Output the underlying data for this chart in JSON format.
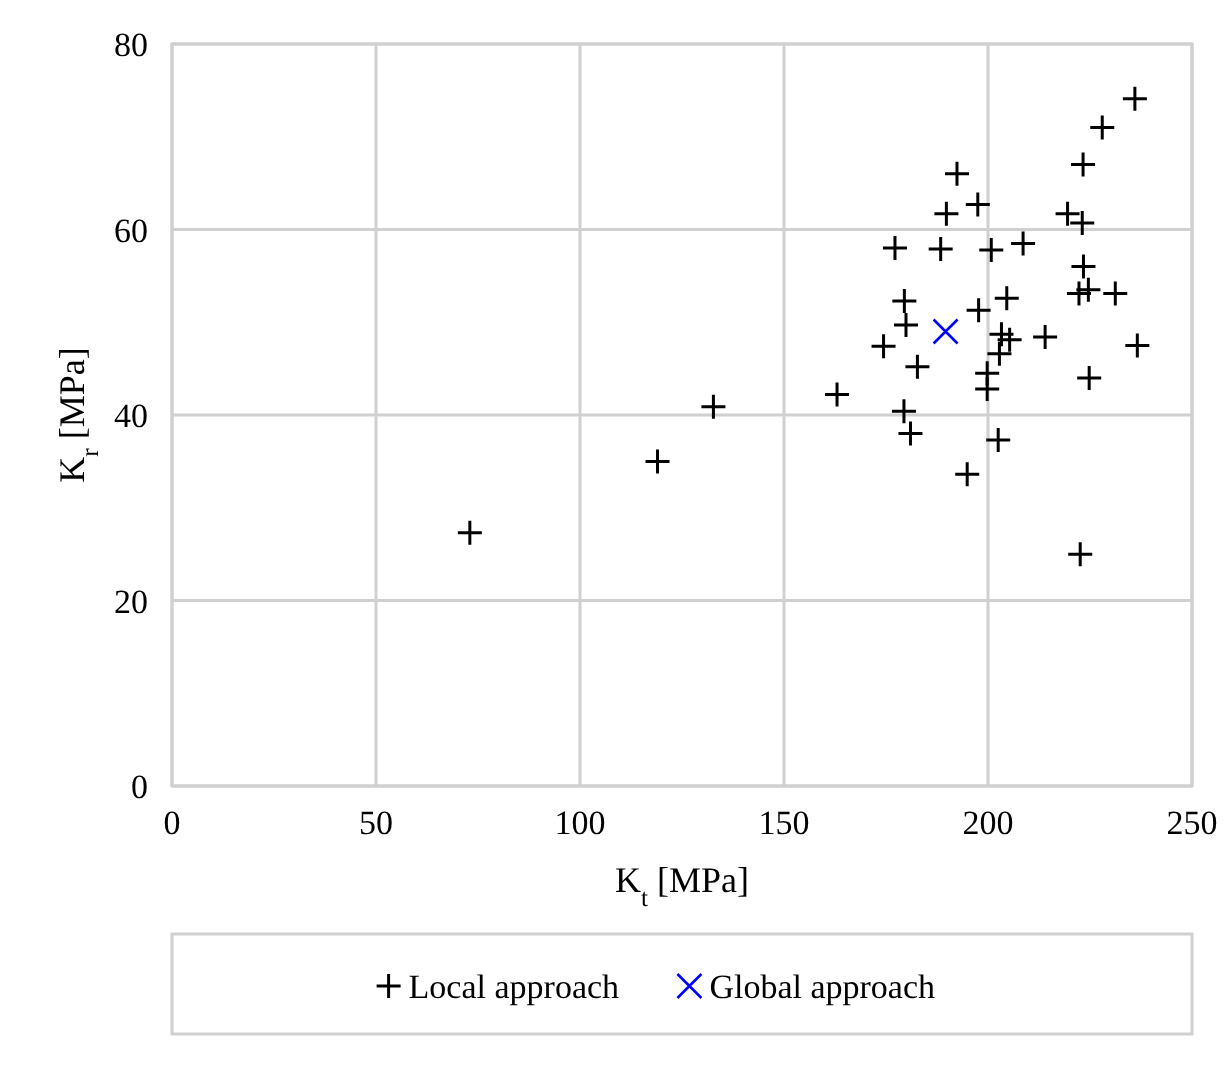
{
  "chart_data": {
    "type": "scatter",
    "xlabel": "K$_{t}$ [MPa]",
    "ylabel": "K$_{r}$ [MPa]",
    "xlim": [
      0,
      250
    ],
    "xticks": [
      0,
      50,
      100,
      150,
      200,
      250
    ],
    "ylim": [
      0,
      80
    ],
    "yticks": [
      0,
      20,
      40,
      60,
      80
    ],
    "grid": true,
    "legend": "bottom",
    "series": [
      {
        "name": "Local approach",
        "color": "#000000",
        "marker": "plus",
        "x": [
          73,
          119,
          132.7,
          163,
          174.4,
          177.2,
          179.4,
          179.5,
          179.9,
          181,
          182.7,
          188.4,
          189.8,
          192.4,
          194.9,
          197.5,
          197.7,
          199.8,
          199.8,
          200.8,
          202.5,
          202.8,
          203.3,
          204.6,
          205.3,
          208.6,
          214,
          219.5,
          222.3,
          222.6,
          223.1,
          223.3,
          223.4,
          224.6,
          224.8,
          228,
          231.2,
          236,
          236.6
        ],
        "values": [
          27.3,
          35,
          40.9,
          42.2,
          47.4,
          58,
          40.4,
          52.3,
          49.7,
          38,
          45.2,
          57.9,
          61.7,
          66,
          33.6,
          62.7,
          51.3,
          44.5,
          42.8,
          57.8,
          37.3,
          46.6,
          48.7,
          52.6,
          48.1,
          58.5,
          48.4,
          61.7,
          53.1,
          25,
          60.7,
          67,
          56,
          53.5,
          44,
          71,
          53.1,
          74.1,
          47.5
        ]
      },
      {
        "name": "Global approach",
        "color": "#0000ff",
        "marker": "cross",
        "x": [
          189.6
        ],
        "values": [
          49
        ]
      }
    ]
  }
}
